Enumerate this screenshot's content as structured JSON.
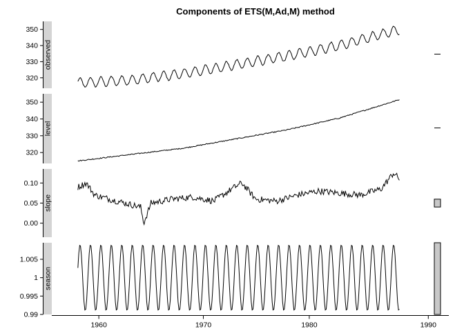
{
  "chart_data": {
    "type": "line",
    "title": "Components of ETS(M,Ad,M) method",
    "x_ticks": [
      1960,
      1970,
      1980,
      1990
    ],
    "x_range": [
      1958.0,
      1988.75
    ],
    "panels": [
      {
        "name": "observed",
        "yticks": [
          320,
          330,
          340,
          350
        ],
        "ylim": [
          313.5,
          355
        ],
        "trend": [
          [
            1958.0,
            316.8
          ],
          [
            1963,
            318.5
          ],
          [
            1968,
            322.5
          ],
          [
            1973,
            328.0
          ],
          [
            1978,
            333.5
          ],
          [
            1983,
            340.0
          ],
          [
            1988.75,
            350.0
          ]
        ],
        "seasonal_amplitude": 3.0,
        "cycles_per_year": 1,
        "noise": 0.35
      },
      {
        "name": "level",
        "yticks": [
          320,
          330,
          340,
          350
        ],
        "ylim": [
          313.5,
          355
        ],
        "trend": [
          [
            1958.0,
            315.0
          ],
          [
            1963,
            318.8
          ],
          [
            1968,
            322.5
          ],
          [
            1973,
            328.0
          ],
          [
            1978,
            333.5
          ],
          [
            1983,
            340.5
          ],
          [
            1988.75,
            351.5
          ]
        ],
        "seasonal_amplitude": 0,
        "cycles_per_year": 0,
        "noise": 0.3
      },
      {
        "name": "slope",
        "yticks": [
          0.0,
          0.05,
          0.1
        ],
        "ylim": [
          -0.035,
          0.135
        ],
        "trend": [
          [
            1958.0,
            0.09
          ],
          [
            1958.8,
            0.1
          ],
          [
            1959.6,
            0.07
          ],
          [
            1961,
            0.06
          ],
          [
            1962.5,
            0.05
          ],
          [
            1964,
            0.04
          ],
          [
            1964.3,
            0.0
          ],
          [
            1965,
            0.05
          ],
          [
            1967,
            0.06
          ],
          [
            1969,
            0.065
          ],
          [
            1971,
            0.055
          ],
          [
            1973,
            0.09
          ],
          [
            1973.7,
            0.1
          ],
          [
            1975,
            0.06
          ],
          [
            1977,
            0.055
          ],
          [
            1979,
            0.07
          ],
          [
            1981,
            0.08
          ],
          [
            1983,
            0.075
          ],
          [
            1985,
            0.07
          ],
          [
            1987,
            0.085
          ],
          [
            1988.2,
            0.125
          ],
          [
            1988.75,
            0.11
          ]
        ],
        "seasonal_amplitude": 0,
        "cycles_per_year": 0,
        "noise": 0.008
      },
      {
        "name": "season",
        "yticks": [
          0.99,
          0.995,
          1.0,
          1.005
        ],
        "ylim": [
          0.99,
          1.0095
        ],
        "trend": [
          [
            1958.0,
            1.0
          ],
          [
            1988.75,
            1.0
          ]
        ],
        "seasonal_amplitude": 0.009,
        "cycles_per_year": 1,
        "noise": 0
      }
    ],
    "grid": false,
    "legend": "none"
  }
}
